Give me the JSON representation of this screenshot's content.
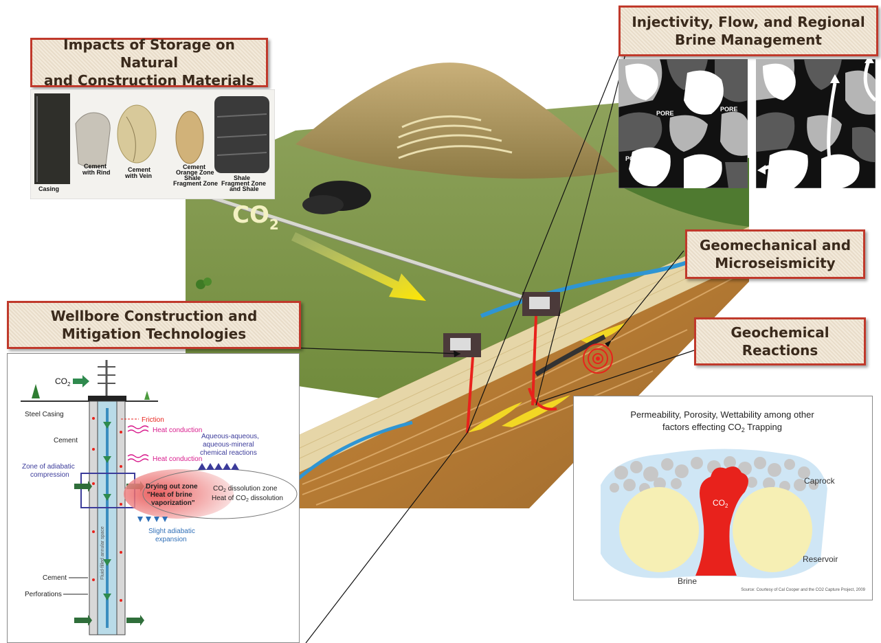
{
  "titles": {
    "impacts": [
      "Impacts of Storage on Natural",
      "and Construction Materials"
    ],
    "injectivity": [
      "Injectivity, Flow, and Regional",
      "Brine Management"
    ],
    "geomechanical": [
      "Geomechanical and",
      "Microseismicity"
    ],
    "wellbore": [
      "Wellbore Construction and",
      "Mitigation Technologies"
    ],
    "geochemical": [
      "Geochemical",
      "Reactions"
    ]
  },
  "materials": {
    "samples": [
      "Casing",
      "Cement with Rind",
      "Cement with Vein",
      "Cement Orange Zone Shale Fragment Zone",
      "Shale Fragment Zone and Shale"
    ],
    "labels": {
      "casing": "Casing",
      "rind_1": "Cement",
      "rind_2": "with Rind",
      "vein_1": "Cement",
      "vein_2": "with Vein",
      "orange_1": "Cement",
      "orange_2": "Orange Zone",
      "orange_3": "Shale",
      "orange_4": "Fragment Zone",
      "shale_1": "Shale",
      "shale_2": "Fragment Zone",
      "shale_3": "and Shale"
    }
  },
  "pores": {
    "label": "PORE"
  },
  "landscape": {
    "co2_main": "CO",
    "co2_sub": "2"
  },
  "wellbore": {
    "co2": "CO",
    "co2_sub": "2",
    "steel_casing": "Steel Casing",
    "friction": "Friction",
    "cement_top": "Cement",
    "heat_conduction_1": "Heat conduction",
    "heat_conduction_2": "Heat conduction",
    "aqueous_1": "Aqueous-aqueous,",
    "aqueous_2": "aqueous-mineral",
    "aqueous_3": "chemical reactions",
    "adiabatic_1": "Zone of adiabatic",
    "adiabatic_2": "compression",
    "drying_1": "Drying out zone",
    "drying_2": "\"Heat of brine",
    "drying_3": "vaporization\"",
    "dissolution_zone": "dissolution zone",
    "heat_dissolution": "Heat of CO",
    "heat_dissolution_end": "dissolution",
    "slight_1": "Slight adiabatic",
    "slight_2": "expansion",
    "cement_bottom": "Cement",
    "perforations": "Perforations",
    "annulus": "Fluid-filled annular space"
  },
  "trapping": {
    "title_1": "Permeability, Porosity, Wettability among other",
    "title_2": "factors effecting CO",
    "title_2_end": "Trapping",
    "caprock": "Caprock",
    "co2": "CO",
    "reservoir": "Reservoir",
    "brine": "Brine",
    "source": "Source: Courtesy of Cal Cooper and the CO2 Capture Project, 2009"
  },
  "colors": {
    "title_border": "#c0392b",
    "title_fill": "#efe3cf",
    "co2_red": "#e8221c",
    "brine_blue": "#cfe6f5",
    "reservoir_yellow": "#f6efb4",
    "pore_black": "#111111"
  }
}
